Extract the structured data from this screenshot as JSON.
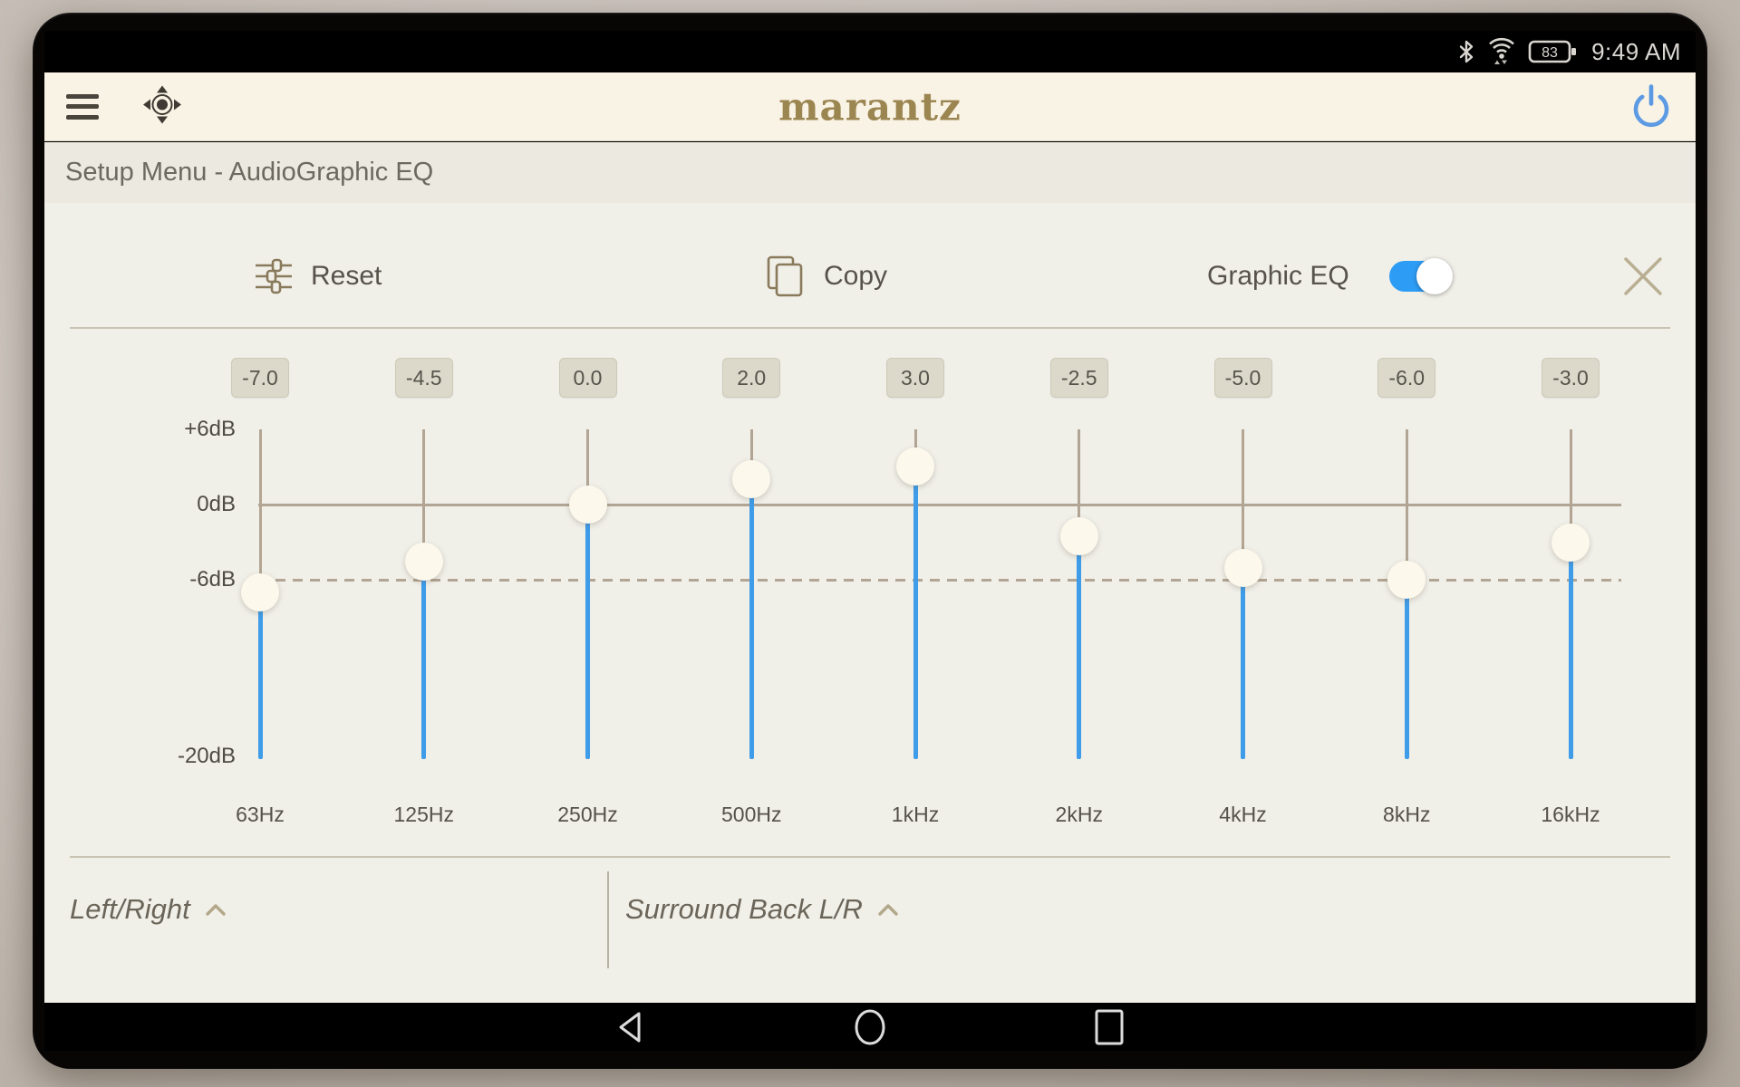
{
  "status_bar": {
    "time": "9:49 AM",
    "battery_level": "83",
    "icons": [
      "bluetooth-icon",
      "wifi-icon",
      "battery-icon"
    ]
  },
  "header": {
    "logo_text": "marantz"
  },
  "title_bar": {
    "title": "Setup Menu - AudioGraphic EQ"
  },
  "toolbar": {
    "reset_label": "Reset",
    "copy_label": "Copy",
    "graphic_eq_label": "Graphic EQ",
    "graphic_eq_enabled": true
  },
  "chart_data": {
    "type": "bar",
    "title": "AudioGraphic EQ band levels",
    "categories": [
      "63Hz",
      "125Hz",
      "250Hz",
      "500Hz",
      "1kHz",
      "2kHz",
      "4kHz",
      "8kHz",
      "16kHz"
    ],
    "values": [
      -7.0,
      -4.5,
      0.0,
      2.0,
      3.0,
      -2.5,
      -5.0,
      -6.0,
      -3.0
    ],
    "value_labels": [
      "-7.0",
      "-4.5",
      "0.0",
      "2.0",
      "3.0",
      "-2.5",
      "-5.0",
      "-6.0",
      "-3.0"
    ],
    "ylabel": "dB",
    "ylim": [
      -20,
      6
    ],
    "y_ticks": [
      {
        "label": "+6dB",
        "value": 6
      },
      {
        "label": "0dB",
        "value": 0
      },
      {
        "label": "-6dB",
        "value": -6
      },
      {
        "label": "-20dB",
        "value": -20
      }
    ],
    "reference_lines": [
      {
        "value": 0,
        "style": "solid"
      },
      {
        "value": -6,
        "style": "dashed"
      }
    ],
    "grid": "horizontal-reference-only",
    "legend": "none"
  },
  "channel_tabs": [
    {
      "label": "Left/Right"
    },
    {
      "label": "Surround Back L/R"
    }
  ],
  "nav_bar": {
    "buttons": [
      "back",
      "home",
      "recents"
    ]
  },
  "colors": {
    "accent_blue": "#2d9cf4",
    "slider_blue": "#3f9ce9",
    "track_tan": "#b2a594",
    "logo_gold": "#9b8551",
    "header_cream": "#f9f3e5",
    "panel_bg": "#f0efe8",
    "power_blue": "#4a90e2"
  }
}
